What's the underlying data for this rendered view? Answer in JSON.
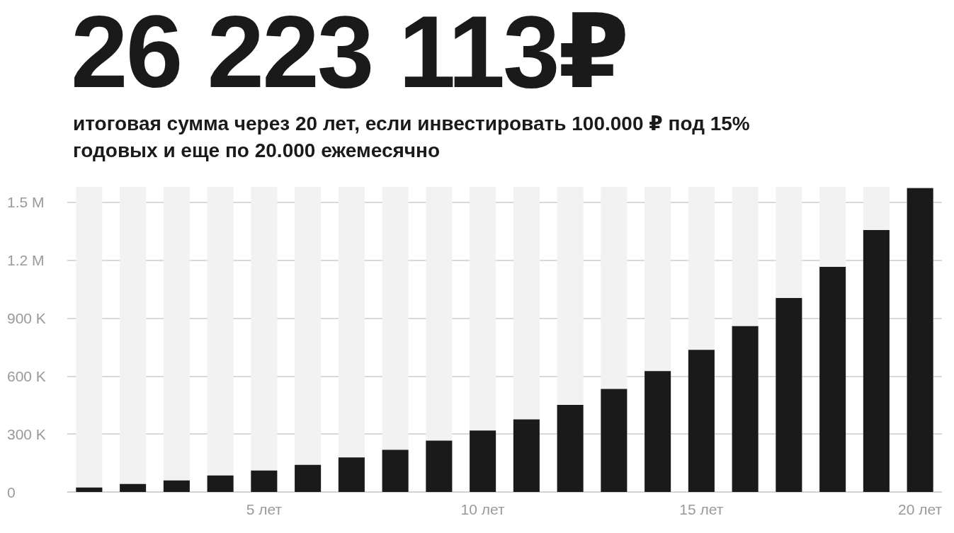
{
  "chart_data": {
    "type": "bar",
    "title": "26 223 113₽",
    "subtitle": "итоговая сумма через 20 лет, если инвестировать 100.000 ₽ под 15% годовых и еще по 20.000 ежемесячно",
    "categories": [
      null,
      null,
      null,
      null,
      "5 лет",
      null,
      null,
      null,
      null,
      "10 лет",
      null,
      null,
      null,
      null,
      "15 лет",
      null,
      null,
      null,
      null,
      "20 лет"
    ],
    "values": [
      23000,
      41000,
      60000,
      85000,
      111000,
      140000,
      179000,
      218000,
      266000,
      318000,
      376000,
      451000,
      533000,
      626000,
      736000,
      859000,
      1004000,
      1166000,
      1356000,
      1574000
    ],
    "color": "#1a1a1a",
    "ylim": [
      0,
      1580000
    ],
    "yticks": [
      0,
      {
        "value": 300000,
        "label": "300 K"
      },
      {
        "value": 600000,
        "label": "600 K"
      },
      {
        "value": 900000,
        "label": "900 K"
      },
      {
        "value": 1200000,
        "label": "1.2 M"
      },
      {
        "value": 1500000,
        "label": "1.5 M"
      }
    ],
    "grid": "y"
  }
}
